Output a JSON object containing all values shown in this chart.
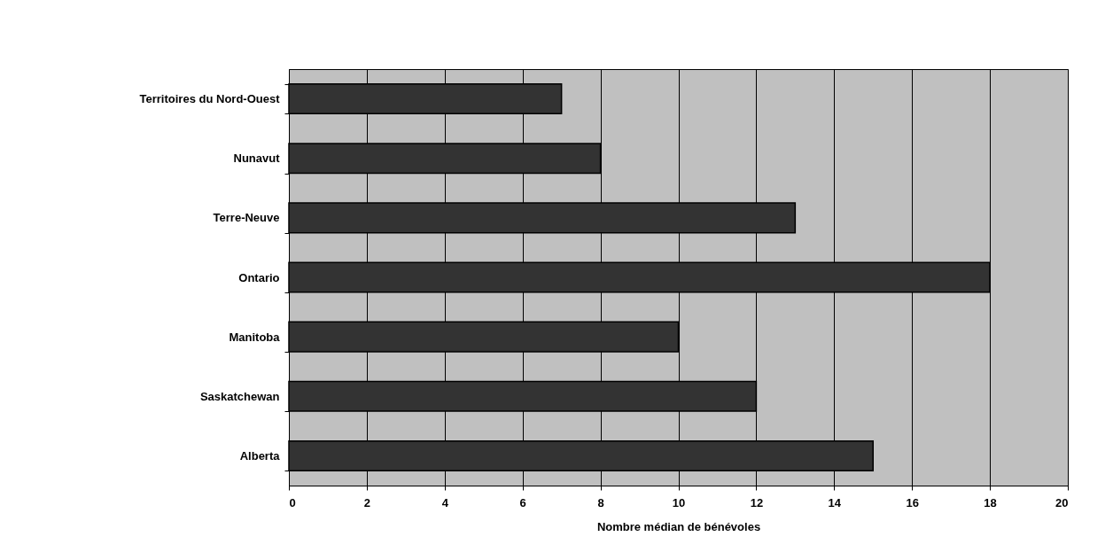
{
  "chart_data": {
    "type": "bar",
    "orientation": "horizontal",
    "xlabel": "Nombre médian de bénévoles",
    "categories": [
      "Territoires du Nord-Ouest",
      "Nunavut",
      "Terre-Neuve",
      "Ontario",
      "Manitoba",
      "Saskatchewan",
      "Alberta"
    ],
    "values": [
      7,
      8,
      13,
      18,
      10,
      12,
      15
    ],
    "color": "#333333",
    "xlim": [
      0,
      20
    ],
    "xticks": [
      0,
      2,
      4,
      6,
      8,
      10,
      12,
      14,
      16,
      18,
      20
    ],
    "grid": "x"
  }
}
